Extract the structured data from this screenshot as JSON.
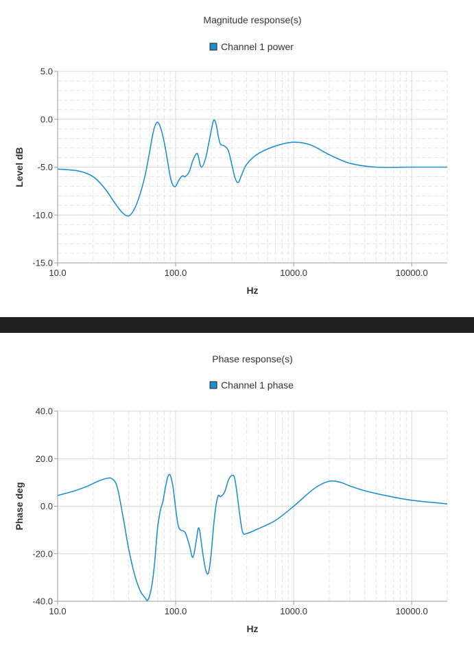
{
  "chart_data": [
    {
      "type": "line",
      "title": "Magnitude response(s)",
      "xlabel": "Hz",
      "ylabel": "Level dB",
      "xscale": "log",
      "xlim": [
        10,
        20000
      ],
      "ylim": [
        -15,
        5
      ],
      "x_ticks": [
        "10.0",
        "100.0",
        "1000.0",
        "10000.0"
      ],
      "y_ticks": [
        "5.0",
        "0.0",
        "-5.0",
        "-10.0",
        "-15.0"
      ],
      "grid": true,
      "legend": "top-center",
      "series": [
        {
          "name": "Channel 1 power",
          "color": "#1e90d0",
          "x": [
            10,
            15,
            20,
            25,
            30,
            35,
            40,
            45,
            50,
            55,
            60,
            65,
            70,
            75,
            80,
            85,
            90,
            95,
            100,
            105,
            110,
            115,
            120,
            130,
            140,
            150,
            155,
            165,
            180,
            200,
            210,
            220,
            230,
            240,
            260,
            280,
            300,
            320,
            340,
            360,
            400,
            500,
            700,
            1000,
            1400,
            2000,
            3000,
            5000,
            10000,
            20000
          ],
          "y": [
            -5.2,
            -5.4,
            -6.0,
            -7.2,
            -8.6,
            -9.7,
            -10.1,
            -9.3,
            -7.8,
            -5.9,
            -3.5,
            -1.2,
            -0.3,
            -1.0,
            -2.4,
            -4.2,
            -6.0,
            -6.9,
            -7.0,
            -6.5,
            -6.1,
            -5.9,
            -6.0,
            -5.5,
            -4.3,
            -3.6,
            -3.8,
            -5.0,
            -4.0,
            -1.2,
            -0.1,
            -0.5,
            -1.8,
            -2.6,
            -2.8,
            -3.3,
            -4.8,
            -6.2,
            -6.6,
            -5.9,
            -4.7,
            -3.6,
            -2.8,
            -2.4,
            -2.7,
            -3.7,
            -4.6,
            -5.0,
            -5.0,
            -5.0
          ]
        }
      ]
    },
    {
      "type": "line",
      "title": "Phase response(s)",
      "xlabel": "Hz",
      "ylabel": "Phase deg",
      "xscale": "log",
      "xlim": [
        10,
        20000
      ],
      "ylim": [
        -40,
        40
      ],
      "x_ticks": [
        "10.0",
        "100.0",
        "1000.0",
        "10000.0"
      ],
      "y_ticks": [
        "40.0",
        "20.0",
        "0.0",
        "-20.0",
        "-40.0"
      ],
      "grid": true,
      "legend": "top-center",
      "series": [
        {
          "name": "Channel 1 phase",
          "color": "#1e90d0",
          "x": [
            10,
            14,
            18,
            22,
            26,
            29,
            32,
            36,
            40,
            45,
            50,
            55,
            58,
            62,
            66,
            70,
            74,
            78,
            82,
            86,
            90,
            95,
            100,
            105,
            110,
            120,
            130,
            140,
            150,
            155,
            160,
            170,
            180,
            190,
            200,
            210,
            220,
            230,
            240,
            260,
            280,
            300,
            315,
            330,
            350,
            370,
            400,
            500,
            700,
            1000,
            1500,
            2000,
            2500,
            3000,
            4000,
            6000,
            10000,
            20000
          ],
          "y": [
            4.5,
            6.5,
            8.5,
            10.5,
            11.7,
            11.5,
            8.0,
            -5.0,
            -18.0,
            -29.0,
            -35.5,
            -38.5,
            -39.5,
            -35.0,
            -25.0,
            -10.0,
            -2.0,
            2.0,
            8.0,
            12.5,
            13.0,
            8.0,
            -1.0,
            -8.0,
            -10.0,
            -11.0,
            -16.0,
            -21.5,
            -14.0,
            -9.5,
            -10.5,
            -20.0,
            -27.0,
            -28.0,
            -20.0,
            -8.0,
            0.5,
            4.5,
            4.0,
            6.0,
            11.0,
            13.0,
            12.0,
            6.0,
            -4.0,
            -11.0,
            -11.5,
            -9.5,
            -6.0,
            0.0,
            7.5,
            10.5,
            10.0,
            8.5,
            6.5,
            4.5,
            2.5,
            1.0
          ]
        }
      ]
    }
  ]
}
